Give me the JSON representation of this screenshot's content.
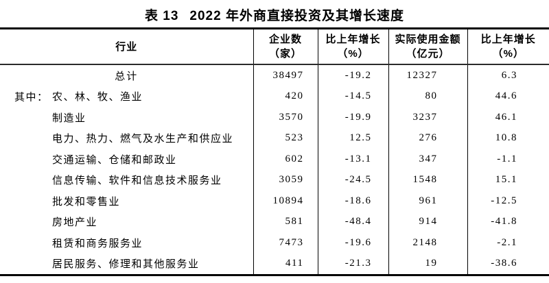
{
  "title": {
    "prefix": "表 13",
    "text": "2022 年外商直接投资及其增长速度"
  },
  "table": {
    "columns": [
      {
        "line1": "行业",
        "line2": ""
      },
      {
        "line1": "企业数",
        "line2": "（家）"
      },
      {
        "line1": "比上年增长",
        "line2": "（%）"
      },
      {
        "line1": "实际使用金额",
        "line2": "（亿元）"
      },
      {
        "line1": "比上年增长",
        "line2": "（%）"
      }
    ],
    "rows": [
      {
        "prefix": "",
        "industry": "总计",
        "enterprises": "38497",
        "growth1": "-19.2",
        "amount": "12327",
        "growth2": "6.3"
      },
      {
        "prefix": "其中：",
        "industry": "农、林、牧、渔业",
        "enterprises": "420",
        "growth1": "-14.5",
        "amount": "80",
        "growth2": "44.6"
      },
      {
        "prefix": "",
        "industry": "制造业",
        "enterprises": "3570",
        "growth1": "-19.9",
        "amount": "3237",
        "growth2": "46.1"
      },
      {
        "prefix": "",
        "industry": "电力、热力、燃气及水生产和供应业",
        "enterprises": "523",
        "growth1": "12.5",
        "amount": "276",
        "growth2": "10.8"
      },
      {
        "prefix": "",
        "industry": "交通运输、仓储和邮政业",
        "enterprises": "602",
        "growth1": "-13.1",
        "amount": "347",
        "growth2": "-1.1"
      },
      {
        "prefix": "",
        "industry": "信息传输、软件和信息技术服务业",
        "enterprises": "3059",
        "growth1": "-24.5",
        "amount": "1548",
        "growth2": "15.1"
      },
      {
        "prefix": "",
        "industry": "批发和零售业",
        "enterprises": "10894",
        "growth1": "-18.6",
        "amount": "961",
        "growth2": "-12.5"
      },
      {
        "prefix": "",
        "industry": "房地产业",
        "enterprises": "581",
        "growth1": "-48.4",
        "amount": "914",
        "growth2": "-41.8"
      },
      {
        "prefix": "",
        "industry": "租赁和商务服务业",
        "enterprises": "7473",
        "growth1": "-19.6",
        "amount": "2148",
        "growth2": "-2.1"
      },
      {
        "prefix": "",
        "industry": "居民服务、修理和其他服务业",
        "enterprises": "411",
        "growth1": "-21.3",
        "amount": "19",
        "growth2": "-38.6"
      }
    ]
  }
}
